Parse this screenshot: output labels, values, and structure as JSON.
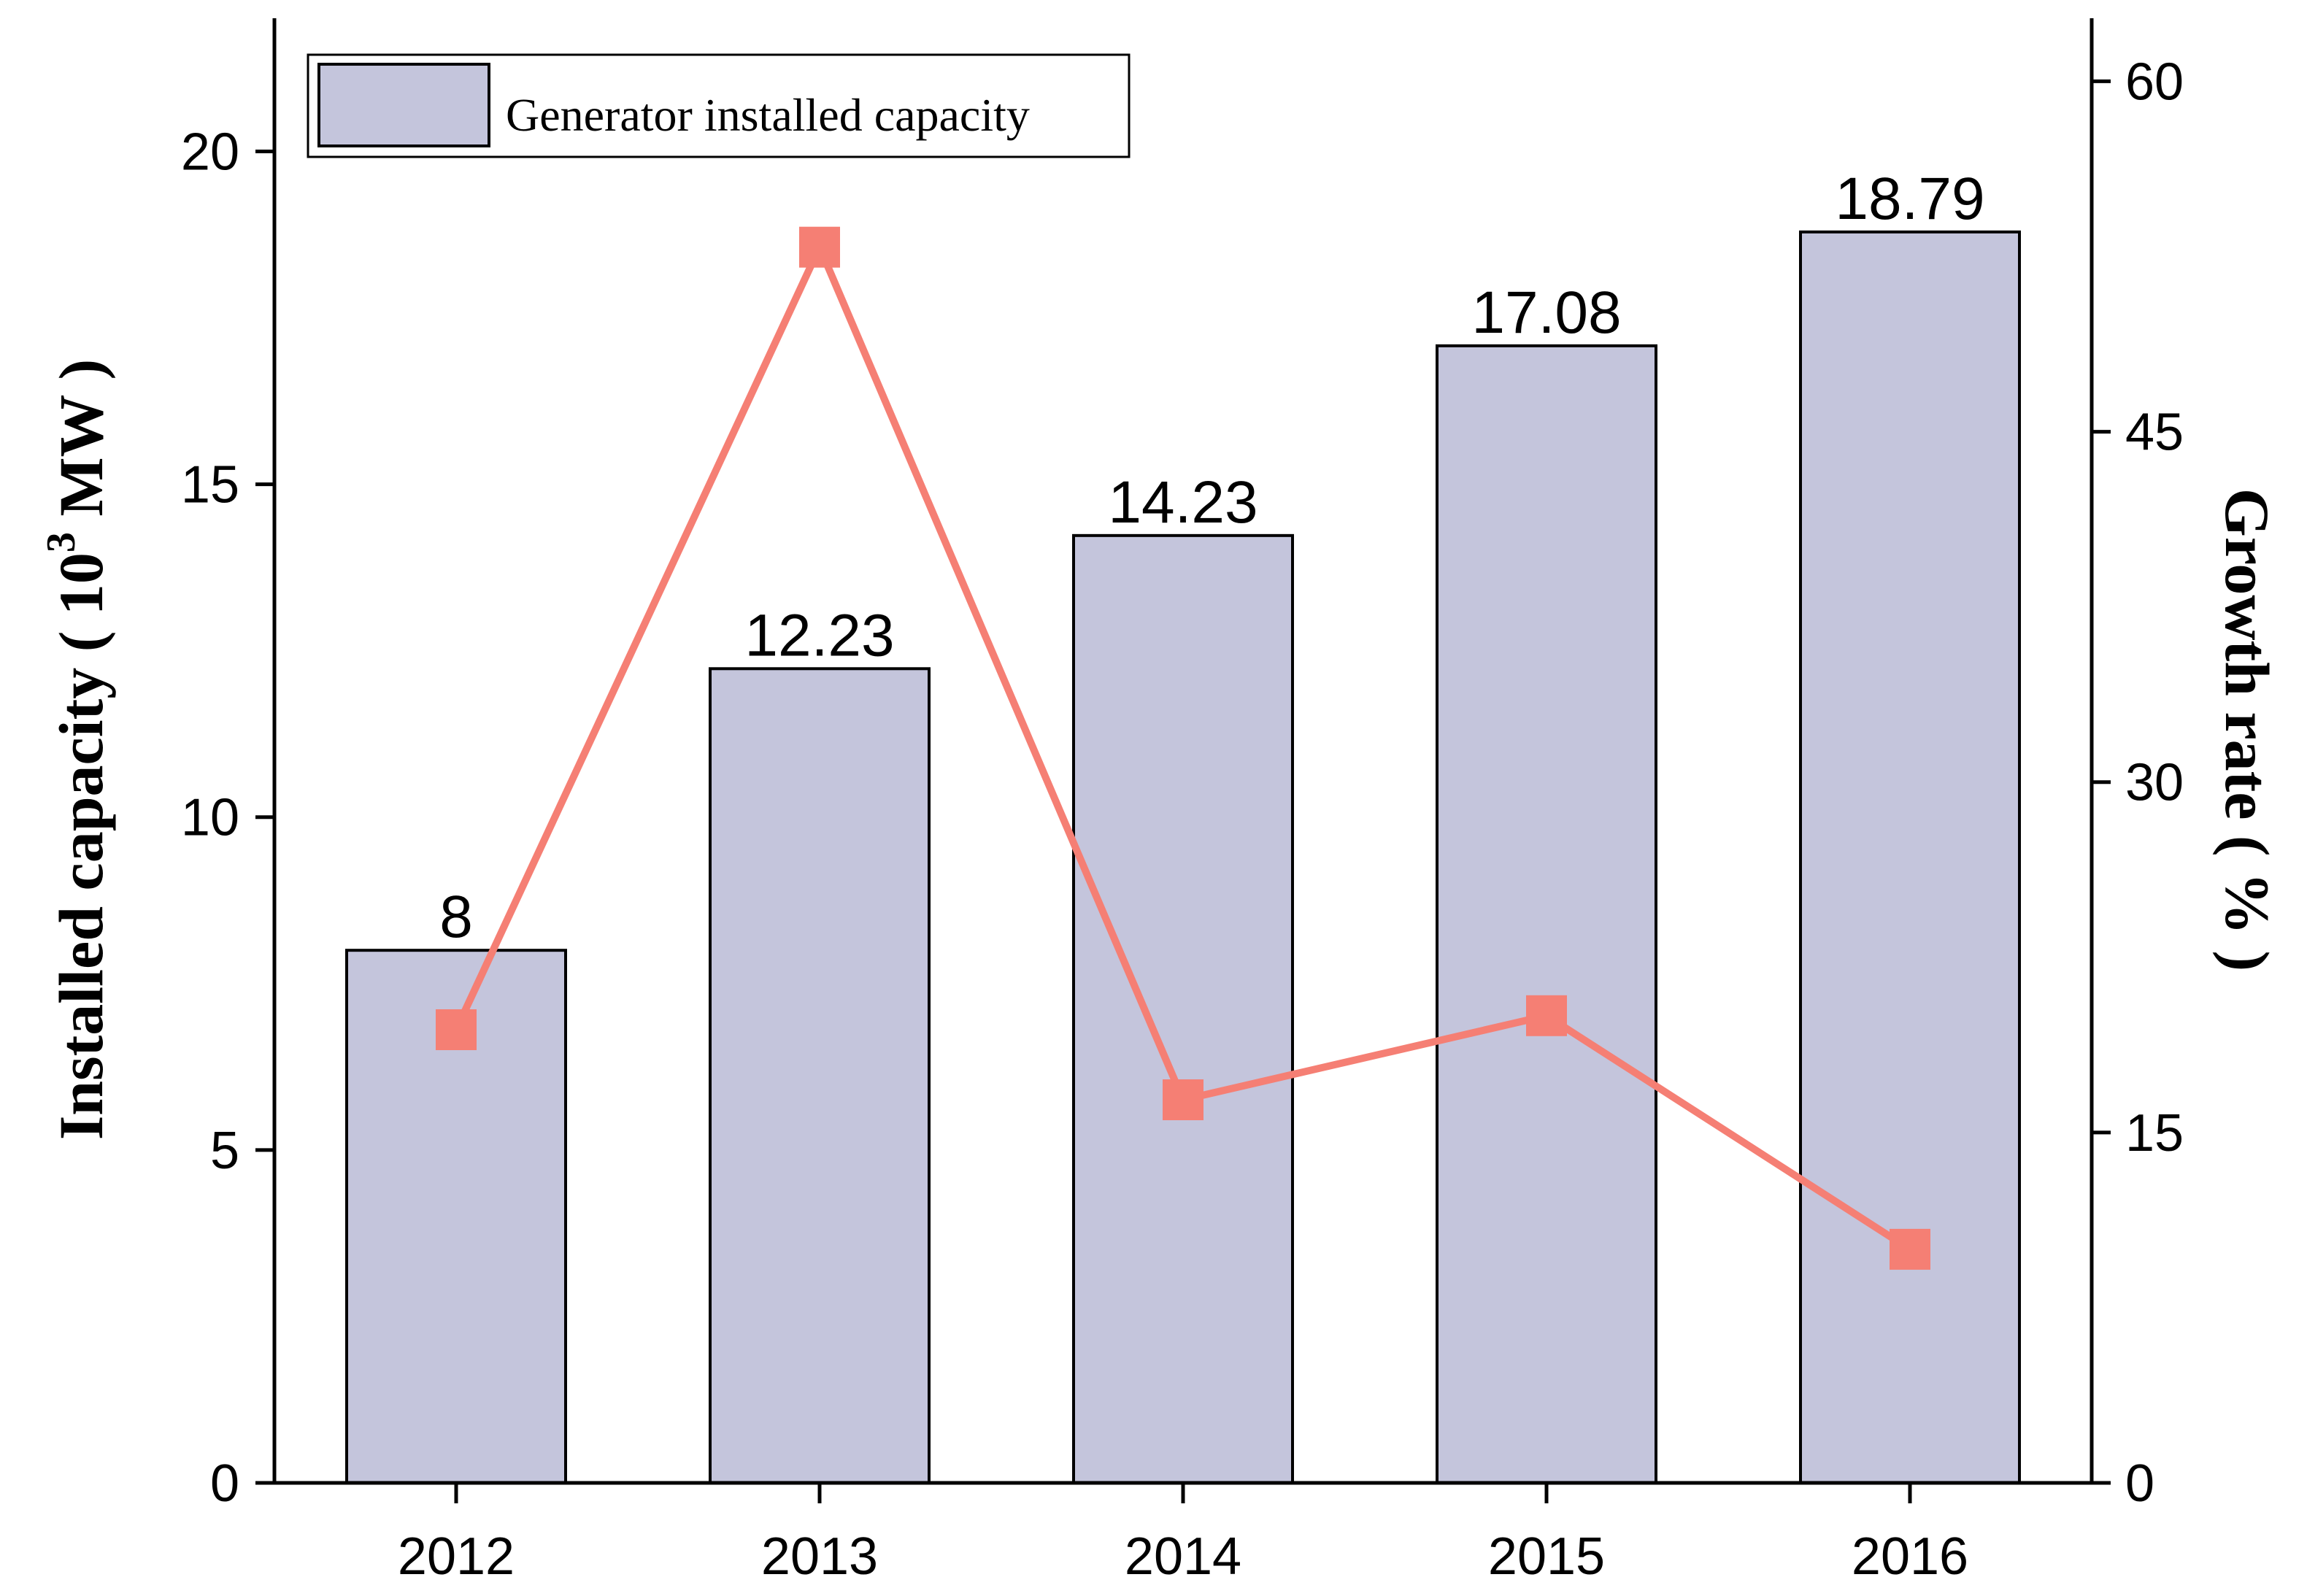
{
  "chart_data": {
    "type": "bar+line",
    "categories": [
      "2012",
      "2013",
      "2014",
      "2015",
      "2016"
    ],
    "series": [
      {
        "name": "Generator installed capacity",
        "type": "bar",
        "axis": "left",
        "values": [
          8,
          12.23,
          14.23,
          17.08,
          18.79
        ],
        "data_labels": [
          "8",
          "12.23",
          "14.23",
          "17.08",
          "18.79"
        ],
        "color": "#c4c5dc"
      },
      {
        "name": "Growth rate",
        "type": "line",
        "axis": "right",
        "values": [
          19.4,
          52.9,
          16.4,
          20.0,
          10.0
        ],
        "color": "#f57f74"
      }
    ],
    "ylabel_main": "Installed capacity ( 10",
    "ylabel_sup": "3",
    "ylabel_unit": " MW )",
    "ylabel_right": "Growth rate ( % )",
    "ylim_left": [
      0,
      22
    ],
    "yticks_left": [
      0,
      5,
      10,
      15,
      20
    ],
    "ytick_labels_left": [
      "0",
      "5",
      "10",
      "15",
      "20"
    ],
    "ylim_right": [
      0,
      62.7
    ],
    "yticks_right": [
      0,
      15,
      30,
      45,
      60
    ],
    "ytick_labels_right": [
      "0",
      "15",
      "30",
      "45",
      "60"
    ],
    "legend": {
      "label": "Generator installed capacity",
      "placement": "top-left"
    },
    "grid": false
  }
}
